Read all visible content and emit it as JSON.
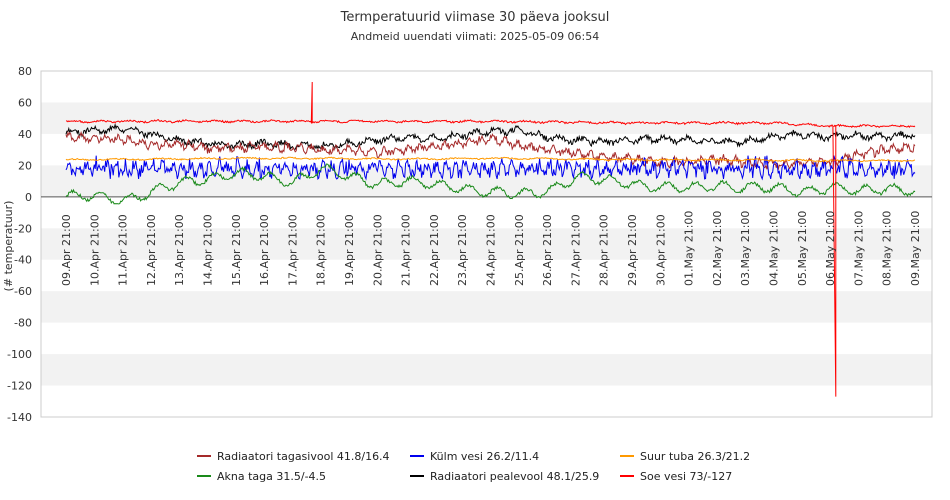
{
  "chart_data": {
    "type": "line",
    "title": "Termperatuurid viimase 30 päeva jooksul",
    "subtitle": "Andmeid uuendati viimati: 2025-05-09 06:54",
    "ylabel": "(# temperatuur)",
    "ylim": [
      -140,
      80
    ],
    "yticks": [
      80,
      60,
      40,
      20,
      0,
      -20,
      -40,
      -60,
      -80,
      -100,
      -120,
      -140
    ],
    "x_days": 30,
    "x_ticks": [
      "09.Apr 21:00",
      "10.Apr 21:00",
      "11.Apr 21:00",
      "12.Apr 21:00",
      "13.Apr 21:00",
      "14.Apr 21:00",
      "15.Apr 21:00",
      "16.Apr 21:00",
      "17.Apr 21:00",
      "18.Apr 21:00",
      "19.Apr 21:00",
      "20.Apr 21:00",
      "21.Apr 21:00",
      "22.Apr 21:00",
      "23.Apr 21:00",
      "24.Apr 21:00",
      "25.Apr 21:00",
      "26.Apr 21:00",
      "27.Apr 21:00",
      "28.Apr 21:00",
      "29.Apr 21:00",
      "30.Apr 21:00",
      "01.May 21:00",
      "02.May 21:00",
      "03.May 21:00",
      "04.May 21:00",
      "05.May 21:00",
      "06.May 21:00",
      "07.May 21:00",
      "08.May 21:00",
      "09.May 21:00"
    ],
    "grid": "horizontal bands",
    "legend_position": "bottom",
    "series": [
      {
        "name": "Radiaatori tagasivool 41.8/16.4",
        "color": "#a52a2a",
        "max": 41.8,
        "min": 16.4,
        "typical": 33,
        "anchors": [
          [
            0,
            38
          ],
          [
            1,
            37
          ],
          [
            2,
            37
          ],
          [
            3,
            33
          ],
          [
            4,
            34
          ],
          [
            5,
            31
          ],
          [
            6,
            31
          ],
          [
            7,
            32
          ],
          [
            8,
            31
          ],
          [
            9,
            30
          ],
          [
            10,
            30
          ],
          [
            11,
            28
          ],
          [
            12,
            30
          ],
          [
            13,
            32
          ],
          [
            14,
            34
          ],
          [
            15,
            37
          ],
          [
            16,
            33
          ],
          [
            17,
            30
          ],
          [
            18,
            28
          ],
          [
            19,
            25
          ],
          [
            20,
            24
          ],
          [
            21,
            22
          ],
          [
            22,
            22
          ],
          [
            23,
            24
          ],
          [
            24,
            22
          ],
          [
            25,
            21
          ],
          [
            26,
            21
          ],
          [
            27,
            22
          ],
          [
            28,
            27
          ],
          [
            29,
            30
          ],
          [
            30,
            32
          ]
        ]
      },
      {
        "name": "Külm vesi 26.2/11.4",
        "color": "#0000ee",
        "max": 26.2,
        "min": 11.4,
        "typical": 17,
        "anchors": [
          [
            0,
            17
          ],
          [
            2,
            17
          ],
          [
            4,
            17
          ],
          [
            6,
            17
          ],
          [
            8,
            17
          ],
          [
            10,
            17
          ],
          [
            12,
            17
          ],
          [
            14,
            17
          ],
          [
            16,
            17
          ],
          [
            18,
            17
          ],
          [
            20,
            17
          ],
          [
            22,
            17
          ],
          [
            24,
            17
          ],
          [
            26,
            17
          ],
          [
            28,
            17
          ],
          [
            30,
            17
          ]
        ]
      },
      {
        "name": "Suur tuba 26.3/21.2",
        "color": "#ff9900",
        "max": 26.3,
        "min": 21.2,
        "typical": 24,
        "anchors": [
          [
            0,
            23.5
          ],
          [
            3,
            24
          ],
          [
            6,
            24.5
          ],
          [
            9,
            24.5
          ],
          [
            12,
            24
          ],
          [
            15,
            24.5
          ],
          [
            18,
            24
          ],
          [
            21,
            23.5
          ],
          [
            24,
            23.5
          ],
          [
            27,
            23
          ],
          [
            30,
            23
          ]
        ]
      },
      {
        "name": "Akna taga 31.5/-4.5",
        "color": "#1a8a1a",
        "max": 31.5,
        "min": -4.5,
        "typical": 5,
        "anchors": [
          [
            0,
            0
          ],
          [
            1,
            0
          ],
          [
            2,
            -2
          ],
          [
            3,
            3
          ],
          [
            4,
            8
          ],
          [
            5,
            12
          ],
          [
            6,
            15
          ],
          [
            7,
            12
          ],
          [
            8,
            10
          ],
          [
            9,
            18
          ],
          [
            10,
            12
          ],
          [
            11,
            9
          ],
          [
            12,
            10
          ],
          [
            13,
            7
          ],
          [
            14,
            6
          ],
          [
            15,
            3
          ],
          [
            16,
            1
          ],
          [
            17,
            4
          ],
          [
            18,
            12
          ],
          [
            19,
            10
          ],
          [
            20,
            9
          ],
          [
            21,
            6
          ],
          [
            22,
            5
          ],
          [
            23,
            8
          ],
          [
            24,
            6
          ],
          [
            25,
            5
          ],
          [
            26,
            4
          ],
          [
            27,
            6
          ],
          [
            28,
            3
          ],
          [
            29,
            6
          ],
          [
            30,
            4
          ]
        ]
      },
      {
        "name": "Radiaatori pealevool 48.1/25.9",
        "color": "#000000",
        "max": 48.1,
        "min": 25.9,
        "typical": 38,
        "anchors": [
          [
            0,
            41
          ],
          [
            1,
            42
          ],
          [
            2,
            43
          ],
          [
            3,
            40
          ],
          [
            4,
            36
          ],
          [
            5,
            34
          ],
          [
            6,
            33
          ],
          [
            7,
            34
          ],
          [
            8,
            33
          ],
          [
            9,
            32
          ],
          [
            10,
            34
          ],
          [
            11,
            36
          ],
          [
            12,
            38
          ],
          [
            13,
            37
          ],
          [
            14,
            39
          ],
          [
            15,
            42
          ],
          [
            16,
            42
          ],
          [
            17,
            38
          ],
          [
            18,
            36
          ],
          [
            19,
            35
          ],
          [
            20,
            36
          ],
          [
            21,
            37
          ],
          [
            22,
            36
          ],
          [
            23,
            35
          ],
          [
            24,
            35
          ],
          [
            25,
            38
          ],
          [
            26,
            40
          ],
          [
            27,
            38
          ],
          [
            28,
            39
          ],
          [
            29,
            38
          ],
          [
            30,
            40
          ]
        ]
      },
      {
        "name": "Soe vesi 73/-127",
        "color": "#ff0000",
        "max": 73,
        "min": -127,
        "typical": 48,
        "anchors": [
          [
            0,
            48
          ],
          [
            5,
            48
          ],
          [
            10,
            48
          ],
          [
            15,
            48
          ],
          [
            20,
            47
          ],
          [
            25,
            47
          ],
          [
            27,
            45
          ],
          [
            30,
            45
          ]
        ]
      }
    ]
  }
}
